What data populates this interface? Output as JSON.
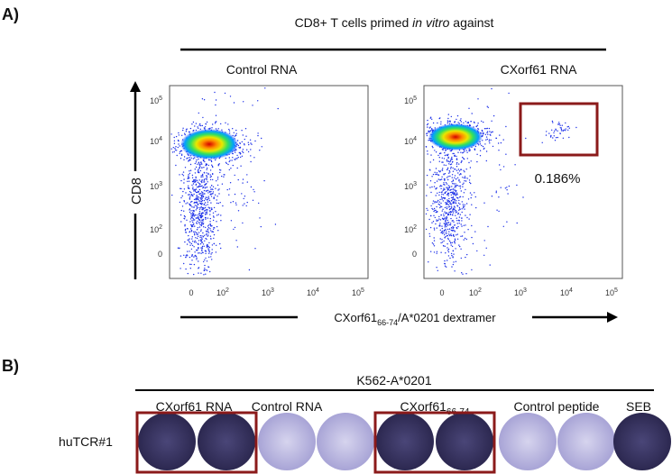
{
  "panel_a": {
    "label": "A)",
    "header": {
      "start": "CD8+ T cells primed ",
      "italic": "in vitro",
      "end": " against"
    },
    "plots": [
      {
        "title": "Control RNA"
      },
      {
        "title": "CXorf61 RNA",
        "gate_label": "0.186%"
      }
    ],
    "y_axis_label": "CD8",
    "y_ticks": [
      {
        "base": "10",
        "exp": "5"
      },
      {
        "base": "10",
        "exp": "4"
      },
      {
        "base": "10",
        "exp": "3"
      },
      {
        "base": "10",
        "exp": "2"
      },
      "0"
    ],
    "x_ticks": [
      "0",
      {
        "base": "10",
        "exp": "2"
      },
      {
        "base": "10",
        "exp": "3"
      },
      {
        "base": "10",
        "exp": "4"
      },
      {
        "base": "10",
        "exp": "5"
      }
    ],
    "x_axis_label": {
      "name": "CXorf61",
      "sub": "66-74",
      "rest": "/A*0201 dextramer"
    }
  },
  "panel_b": {
    "label": "B)",
    "group_label": "K562-A*0201",
    "row_label": "huTCR#1",
    "columns": [
      {
        "name": "CXorf61 RNA"
      },
      {
        "name": "Control RNA"
      },
      {
        "name": "CXorf61",
        "sub": "66-74"
      },
      {
        "name": "Control peptide"
      },
      {
        "name": "SEB"
      }
    ]
  }
}
